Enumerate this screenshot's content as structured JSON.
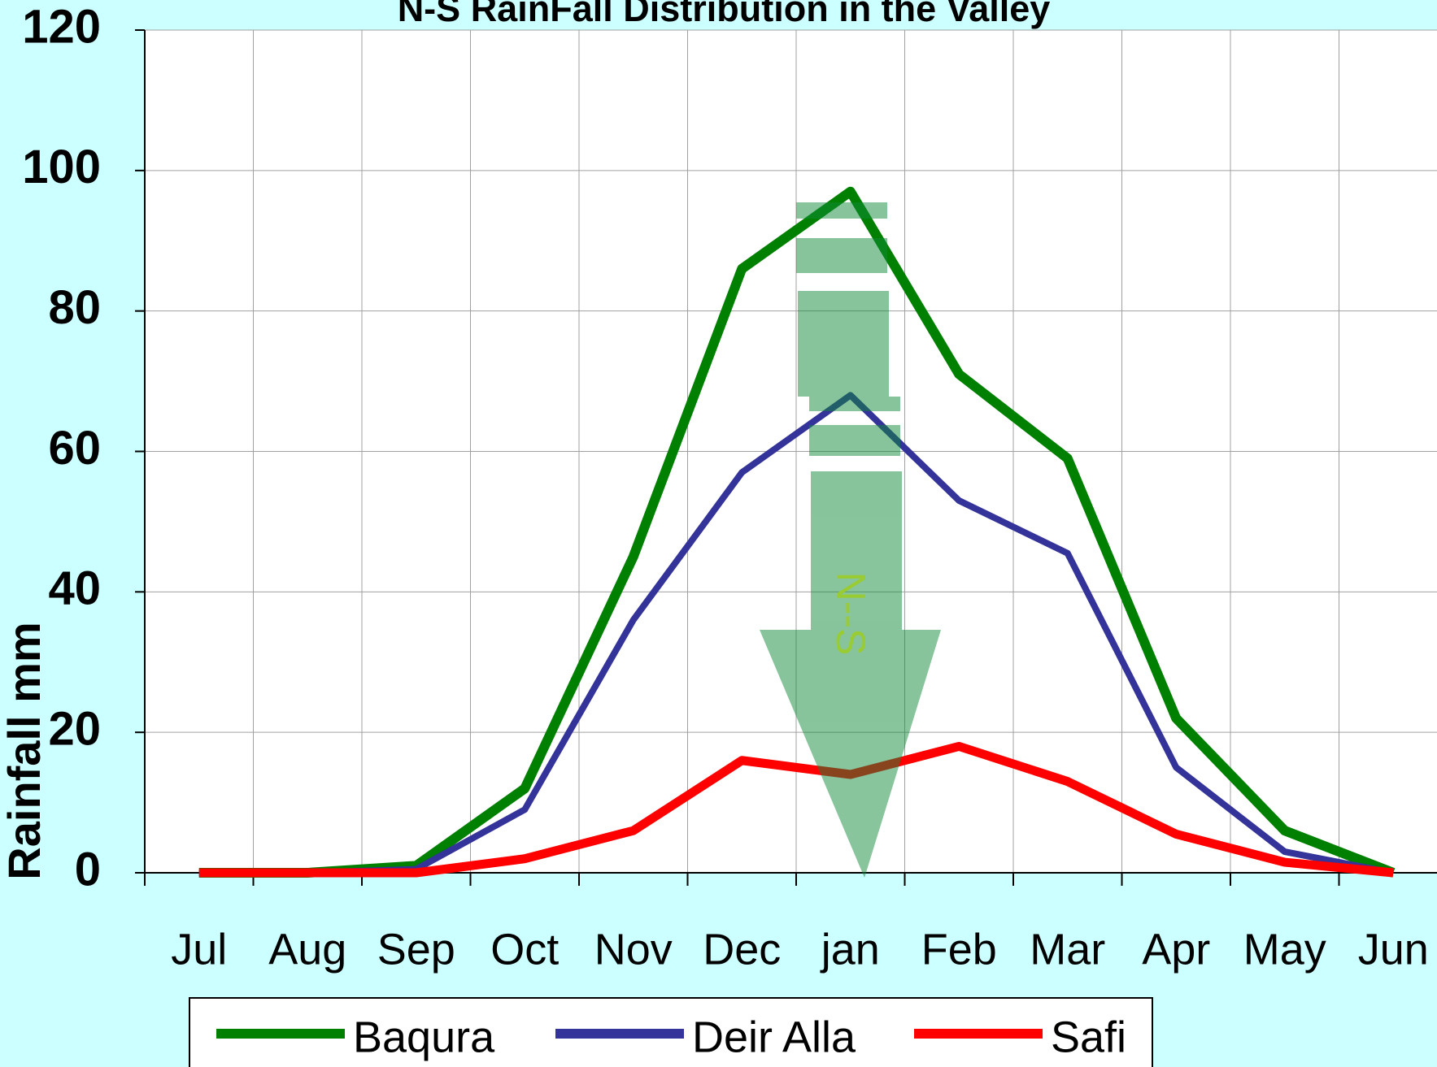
{
  "chart_data": {
    "type": "line",
    "title": "N-S RainFall Distribution in the Valley",
    "y_label": "Rainfall  mm",
    "annotation": "N--S",
    "categories": [
      "Jul",
      "Aug",
      "Sep",
      "Oct",
      "Nov",
      "Dec",
      "jan",
      "Feb",
      "Mar",
      "Apr",
      "May",
      "Jun"
    ],
    "series": [
      {
        "name": "Baqura",
        "color": "#008000",
        "values": [
          0,
          0,
          1,
          12,
          45,
          86,
          97,
          71,
          59,
          22,
          6,
          0
        ]
      },
      {
        "name": "Deir Alla",
        "color": "#333399",
        "values": [
          0,
          0,
          0.5,
          9,
          36,
          57,
          68,
          53,
          45.5,
          15,
          3,
          0
        ]
      },
      {
        "name": "Safi",
        "color": "#ff0000",
        "values": [
          0,
          0,
          0,
          2,
          6,
          16,
          14,
          18,
          13,
          5.5,
          1.5,
          0
        ]
      }
    ],
    "ylim": [
      0,
      120
    ],
    "yticks": [
      0,
      20,
      40,
      60,
      80,
      100,
      120
    ],
    "grid": true
  }
}
